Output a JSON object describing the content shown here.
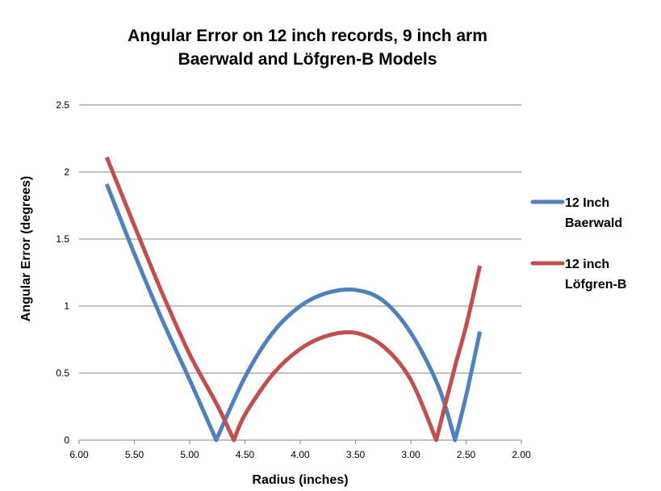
{
  "chart_data": {
    "type": "line",
    "title": [
      "Angular Error on 12 inch records, 9 inch arm",
      "Baerwald and Löfgren-B Models"
    ],
    "xlabel": "Radius (inches)",
    "ylabel": "Angular Error (degrees)",
    "xlim": [
      6.0,
      2.0
    ],
    "ylim": [
      0,
      2.5
    ],
    "x_reversed": true,
    "grid": true,
    "legend_position": "right",
    "xticks": [
      6.0,
      5.5,
      5.0,
      4.5,
      4.0,
      3.5,
      3.0,
      2.5,
      2.0
    ],
    "xtick_labels": [
      "6.00",
      "5.50",
      "5.00",
      "4.50",
      "4.00",
      "3.50",
      "3.00",
      "2.50",
      "2.00"
    ],
    "yticks": [
      0,
      0.5,
      1,
      1.5,
      2,
      2.5
    ],
    "ytick_labels": [
      "0",
      "0.5",
      "1",
      "1.5",
      "2",
      "2.5"
    ],
    "series": [
      {
        "name": "12 Inch Baerwald",
        "legend_lines": [
          "12 Inch",
          "Baerwald"
        ],
        "color": "#4f81bd",
        "x": [
          5.75,
          5.5,
          5.25,
          5.0,
          4.76,
          4.5,
          4.25,
          4.0,
          3.75,
          3.5,
          3.25,
          3.0,
          2.75,
          2.6,
          2.5,
          2.375
        ],
        "y": [
          1.91,
          1.39,
          0.9,
          0.45,
          0.0,
          0.47,
          0.8,
          1.0,
          1.1,
          1.12,
          1.04,
          0.8,
          0.4,
          0.0,
          0.33,
          0.81
        ]
      },
      {
        "name": "12 inch Löfgren-B",
        "legend_lines": [
          "12 inch",
          "Löfgren-B"
        ],
        "color": "#c0504d",
        "x": [
          5.75,
          5.5,
          5.25,
          5.0,
          4.75,
          4.6,
          4.5,
          4.25,
          4.0,
          3.75,
          3.5,
          3.25,
          3.0,
          2.77,
          2.6,
          2.5,
          2.375
        ],
        "y": [
          2.11,
          1.6,
          1.1,
          0.64,
          0.26,
          0.0,
          0.19,
          0.49,
          0.68,
          0.78,
          0.8,
          0.7,
          0.45,
          0.0,
          0.55,
          0.85,
          1.3
        ]
      }
    ]
  }
}
